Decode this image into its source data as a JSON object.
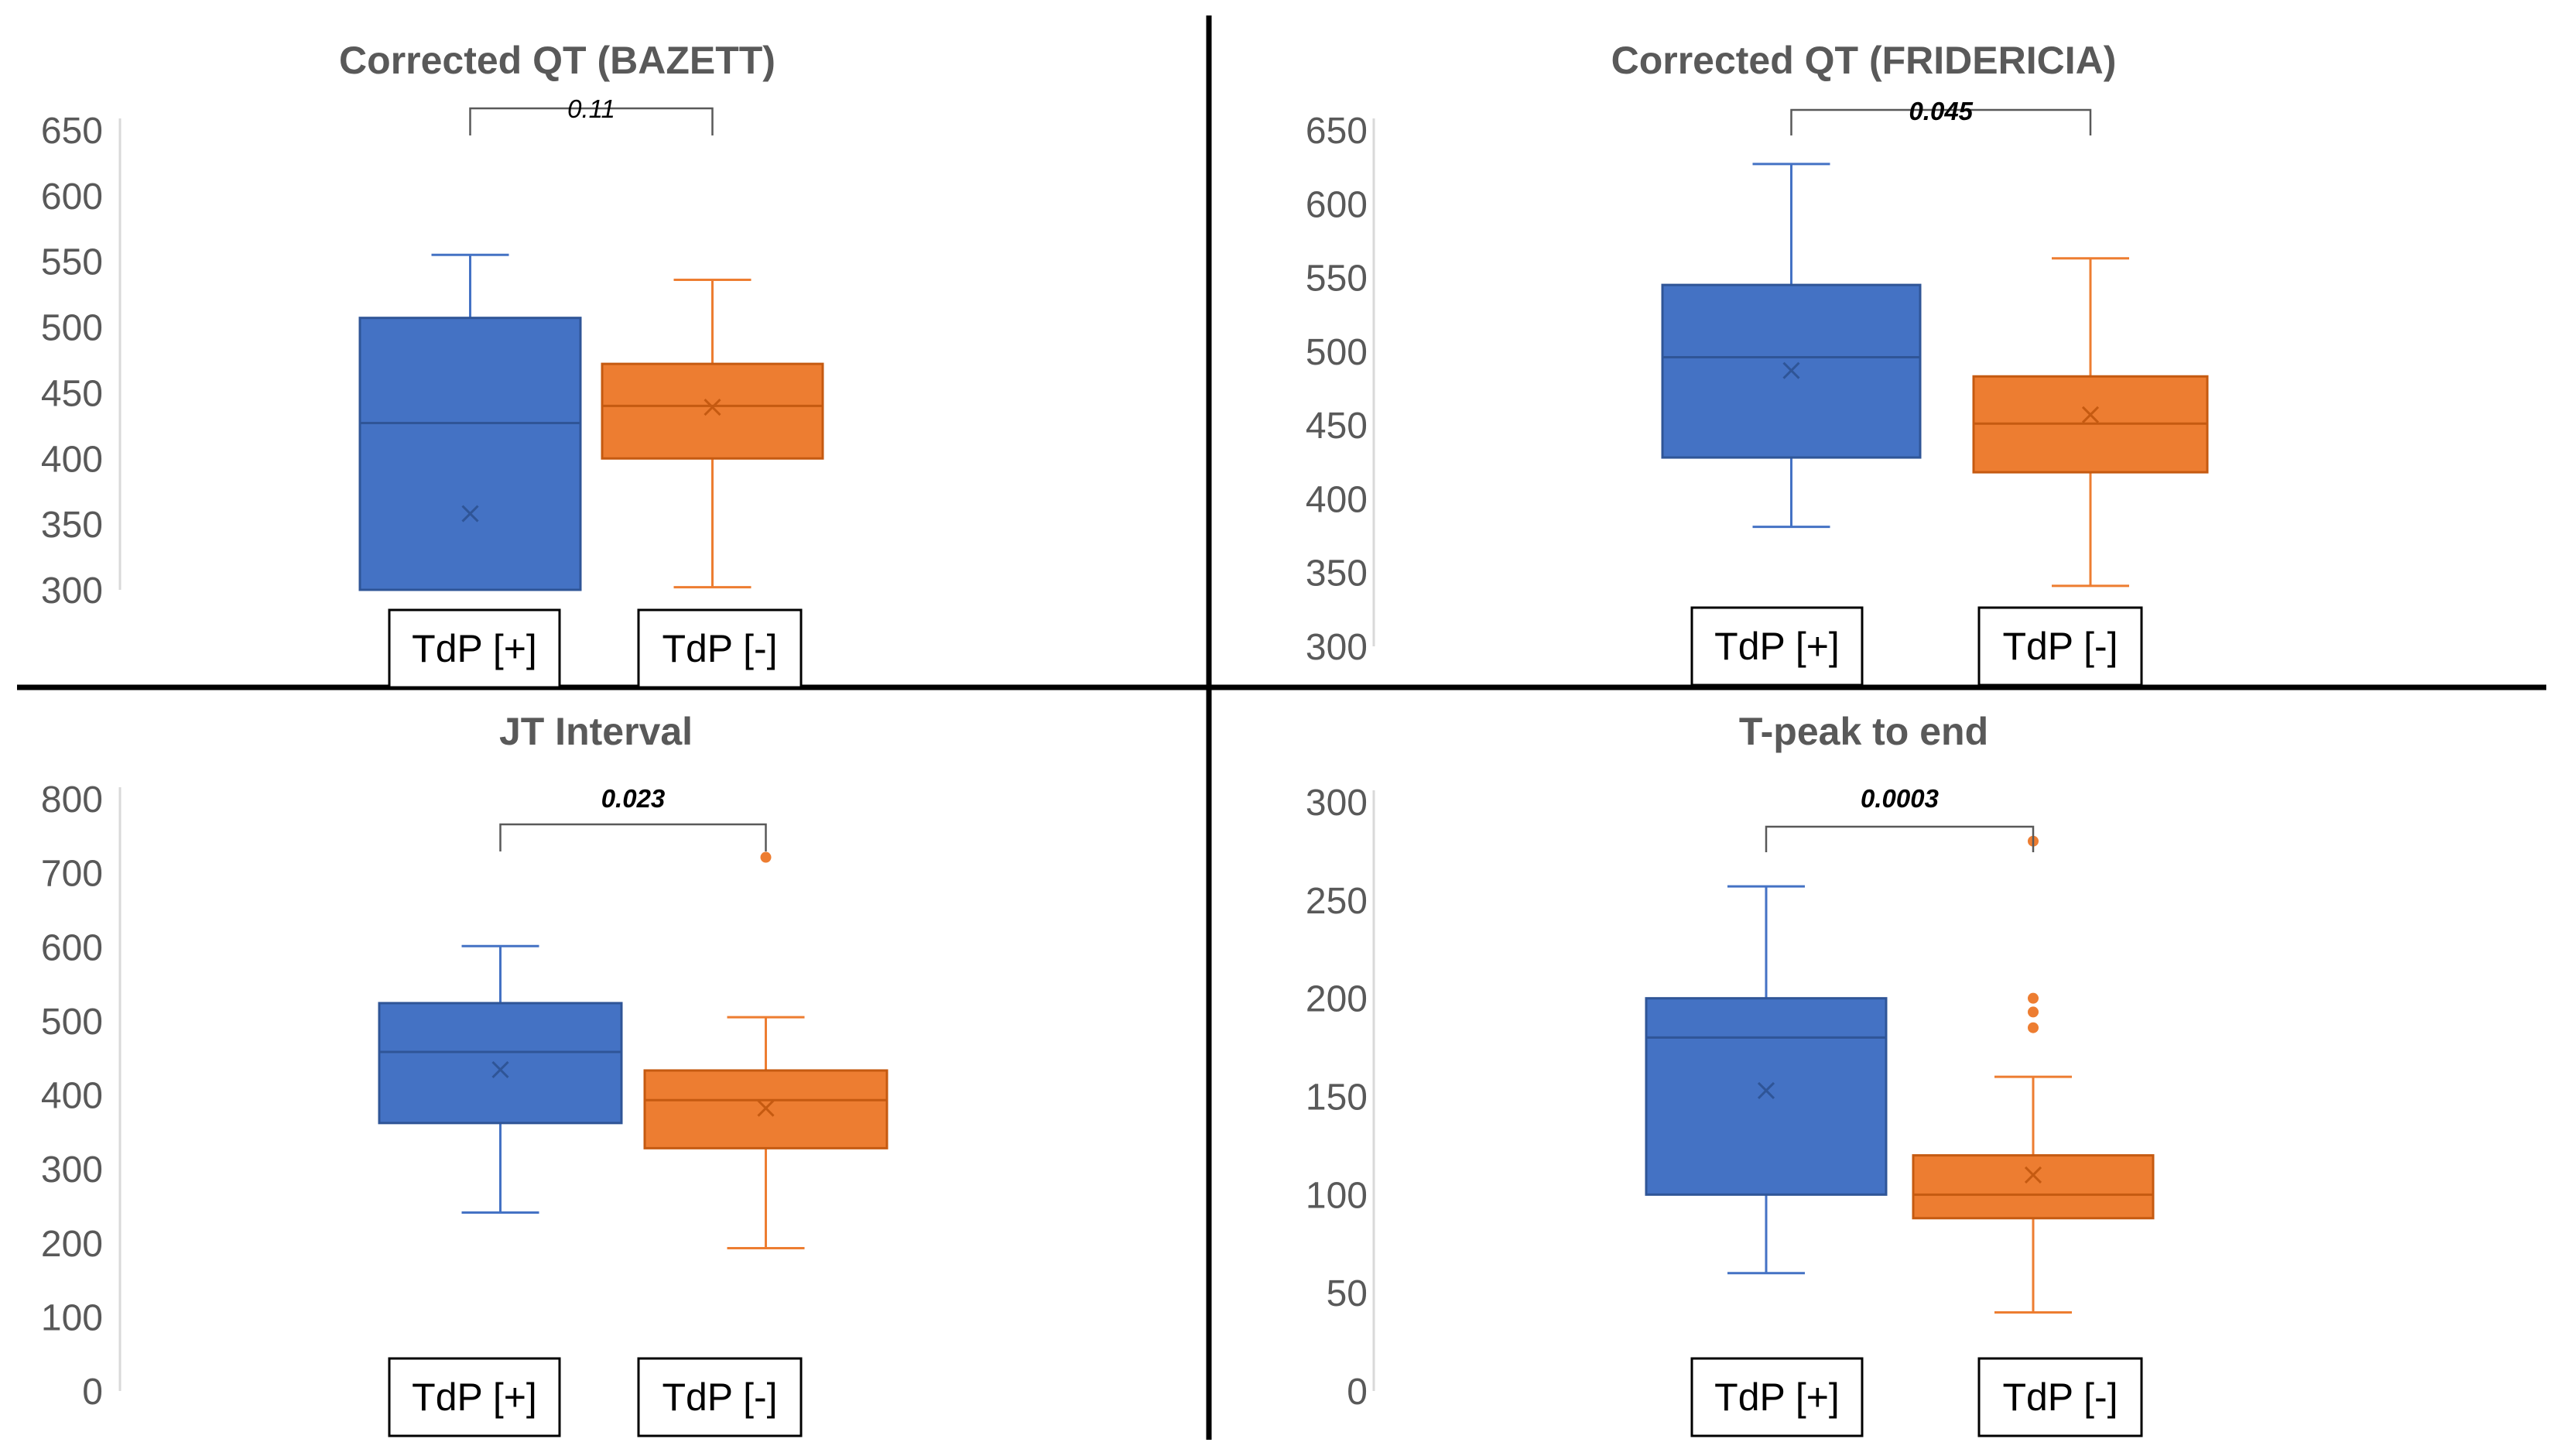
{
  "chart_data": [
    {
      "type": "box",
      "title": "Corrected QT (BAZETT)",
      "yticks": [
        300,
        350,
        400,
        450,
        500,
        550,
        600,
        650
      ],
      "ylim": [
        300,
        650
      ],
      "p_value": "0.11",
      "p_bold": false,
      "series": [
        {
          "name": "TdP [+]",
          "color": "#4472c4",
          "min": 300,
          "q1": 300,
          "median": 427,
          "q3": 507,
          "max": 555,
          "mean": 358,
          "outliers": []
        },
        {
          "name": "TdP [-]",
          "color": "#ed7d31",
          "min": 302,
          "q1": 400,
          "median": 440,
          "q3": 472,
          "max": 536,
          "mean": 439,
          "outliers": []
        }
      ]
    },
    {
      "type": "box",
      "title": "Corrected QT (FRIDERICIA)",
      "yticks": [
        300,
        350,
        400,
        450,
        500,
        550,
        600,
        650
      ],
      "ylim": [
        300,
        650
      ],
      "p_value": "0.045",
      "p_bold": true,
      "series": [
        {
          "name": "TdP [+]",
          "color": "#4472c4",
          "min": 381,
          "q1": 428,
          "median": 496,
          "q3": 545,
          "max": 627,
          "mean": 487,
          "outliers": []
        },
        {
          "name": "TdP [-]",
          "color": "#ed7d31",
          "min": 341,
          "q1": 418,
          "median": 451,
          "q3": 483,
          "max": 563,
          "mean": 457,
          "outliers": []
        }
      ]
    },
    {
      "type": "box",
      "title": "JT Interval",
      "yticks": [
        0,
        100,
        200,
        300,
        400,
        500,
        600,
        700,
        800
      ],
      "ylim": [
        0,
        800
      ],
      "p_value": "0.023",
      "p_bold": true,
      "series": [
        {
          "name": "TdP [+]",
          "color": "#4472c4",
          "min": 241,
          "q1": 362,
          "median": 458,
          "q3": 524,
          "max": 601,
          "mean": 434,
          "outliers": []
        },
        {
          "name": "TdP [-]",
          "color": "#ed7d31",
          "min": 193,
          "q1": 328,
          "median": 393,
          "q3": 433,
          "max": 505,
          "mean": 382,
          "outliers": [
            721
          ]
        }
      ]
    },
    {
      "type": "box",
      "title": "T-peak to end",
      "yticks": [
        0,
        50,
        100,
        150,
        200,
        250,
        300
      ],
      "ylim": [
        0,
        300
      ],
      "p_value": "0.0003",
      "p_bold": true,
      "series": [
        {
          "name": "TdP [+]",
          "color": "#4472c4",
          "min": 60,
          "q1": 100,
          "median": 180,
          "q3": 200,
          "max": 257,
          "mean": 153,
          "outliers": []
        },
        {
          "name": "TdP [-]",
          "color": "#ed7d31",
          "min": 40,
          "q1": 88,
          "median": 100,
          "q3": 120,
          "max": 160,
          "mean": 110,
          "outliers": [
            280,
            200,
            193,
            185
          ]
        }
      ]
    }
  ]
}
